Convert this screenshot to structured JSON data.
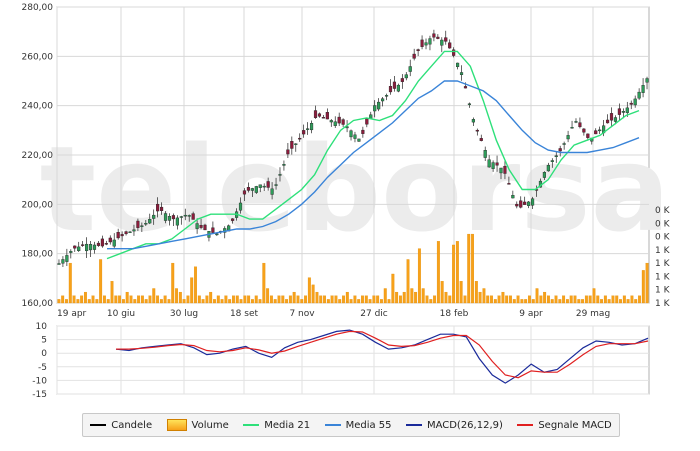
{
  "chart_data": [
    {
      "type": "candlestick",
      "title": "",
      "x_tick_labels": [
        "19 apr",
        "10 giu",
        "30 lug",
        "18 set",
        "7 nov",
        "27 dic",
        "18 feb",
        "9 apr",
        "29 mag"
      ],
      "y_tick_labels": [
        "160,00",
        "180,00",
        "200,00",
        "220,00",
        "240,00",
        "260,00",
        "280,00"
      ],
      "ylim": [
        160,
        280
      ],
      "volume_tick_labels": [
        "0 K",
        "0 K",
        "0 K",
        "1 K",
        "1 K",
        "1 K",
        "1 K",
        "1 K"
      ],
      "grid": true,
      "watermark": "teleborsa",
      "close_approx": [
        176,
        182,
        184,
        183,
        186,
        189,
        192,
        198,
        194,
        196,
        190,
        188,
        192,
        205,
        208,
        206,
        221,
        228,
        236,
        234,
        232,
        226,
        240,
        245,
        250,
        262,
        268,
        266,
        255,
        232,
        218,
        214,
        198,
        202,
        215,
        222,
        234,
        226,
        232,
        236,
        241,
        251
      ],
      "series": [
        {
          "name": "Media 21",
          "color": "#2ee07a",
          "values": [
            178,
            180,
            182,
            184,
            184,
            186,
            190,
            194,
            196,
            196,
            196,
            194,
            194,
            198,
            202,
            206,
            212,
            222,
            230,
            234,
            235,
            234,
            236,
            242,
            250,
            256,
            262,
            262,
            256,
            242,
            226,
            214,
            206,
            206,
            210,
            218,
            224,
            226,
            228,
            232,
            236,
            238
          ]
        },
        {
          "name": "Media 55",
          "color": "#3a84d8",
          "values": [
            182,
            182,
            182,
            183,
            184,
            185,
            186,
            187,
            188,
            189,
            190,
            190,
            191,
            193,
            196,
            200,
            205,
            211,
            216,
            221,
            225,
            229,
            233,
            238,
            243,
            246,
            250,
            250,
            248,
            246,
            242,
            236,
            230,
            225,
            222,
            221,
            221,
            221,
            222,
            223,
            225,
            227
          ]
        }
      ],
      "volume_approx": [
        0.05,
        0.1,
        0.05,
        0.55,
        0.1,
        0.05,
        0.1,
        0.15,
        0.05,
        0.1,
        0.05,
        0.6,
        0.1,
        0.05,
        0.3,
        0.1,
        0.1,
        0.05,
        0.15,
        0.1,
        0.05,
        0.1,
        0.1,
        0.05,
        0.1,
        0.2,
        0.1,
        0.05,
        0.1,
        0.05,
        0.55,
        0.2,
        0.15,
        0.05,
        0.1,
        0.35,
        0.5,
        0.1,
        0.05,
        0.1,
        0.15,
        0.05,
        0.1,
        0.05,
        0.1,
        0.05,
        0.1,
        0.1,
        0.05,
        0.1,
        0.1,
        0.05,
        0.1,
        0.05,
        0.55,
        0.2,
        0.1,
        0.05,
        0.1,
        0.1,
        0.05,
        0.1,
        0.15,
        0.1,
        0.05,
        0.1,
        0.35,
        0.25,
        0.15,
        0.1,
        0.1,
        0.05,
        0.1,
        0.1,
        0.05,
        0.1,
        0.15,
        0.05,
        0.1,
        0.05,
        0.1,
        0.1,
        0.05,
        0.1,
        0.1,
        0.05,
        0.2,
        0.05,
        0.4,
        0.15,
        0.1,
        0.15,
        0.6,
        0.2,
        0.15,
        0.75,
        0.2,
        0.1,
        0.05,
        0.1,
        0.85,
        0.3,
        0.15,
        0.1,
        0.8,
        0.85,
        0.3,
        0.1,
        0.95,
        0.95,
        0.3,
        0.15,
        0.2,
        0.1,
        0.1,
        0.05,
        0.1,
        0.15,
        0.1,
        0.1,
        0.05,
        0.1,
        0.05,
        0.05,
        0.1,
        0.05,
        0.2,
        0.1,
        0.15,
        0.1,
        0.05,
        0.1,
        0.05,
        0.1,
        0.05,
        0.1,
        0.1,
        0.05,
        0.05,
        0.1,
        0.1,
        0.2,
        0.1,
        0.05,
        0.1,
        0.05,
        0.1,
        0.1,
        0.05,
        0.1,
        0.05,
        0.1,
        0.05,
        0.1,
        0.45,
        0.55
      ]
    },
    {
      "type": "line",
      "title": "",
      "y_tick_labels": [
        "10",
        "5",
        "0",
        "-5",
        "-10",
        "-15"
      ],
      "ylim": [
        -15,
        10
      ],
      "series": [
        {
          "name": "MACD(26,12,9)",
          "color": "#1a2a9a",
          "values": [
            1.5,
            1,
            2,
            2.5,
            3,
            3.5,
            2,
            -0.5,
            0,
            1.5,
            2.5,
            0,
            -1.5,
            2,
            4,
            5,
            6.5,
            8,
            8.5,
            7,
            4,
            1.5,
            2,
            3,
            5,
            7,
            7,
            6,
            -2,
            -8,
            -11,
            -8,
            -4,
            -7,
            -6,
            -2,
            2,
            4.5,
            4,
            3,
            3.5,
            5.5
          ]
        },
        {
          "name": "Segnale MACD",
          "color": "#e02020",
          "values": [
            1.5,
            1.5,
            1.8,
            2.2,
            2.8,
            3.2,
            2.8,
            1,
            0.5,
            1,
            2,
            1.2,
            0,
            0.8,
            2.5,
            4,
            5.5,
            7,
            8,
            7.8,
            5.5,
            3,
            2.5,
            2.8,
            4,
            5.5,
            6.5,
            6.5,
            3,
            -3,
            -8,
            -9,
            -6.5,
            -7,
            -7,
            -4,
            -0.5,
            2.5,
            3.5,
            3.5,
            3.5,
            4.5
          ]
        }
      ]
    }
  ],
  "legend": [
    {
      "label": "Candele",
      "icon": "black-line",
      "color": "#000000"
    },
    {
      "label": "Volume",
      "icon": "volume-bar",
      "color": "#f7a11a"
    },
    {
      "label": "Media 21",
      "icon": "line",
      "color": "#2ee07a"
    },
    {
      "label": "Media 55",
      "icon": "line",
      "color": "#3a84d8"
    },
    {
      "label": "MACD(26,12,9)",
      "icon": "line",
      "color": "#1a2a9a"
    },
    {
      "label": "Segnale MACD",
      "icon": "line",
      "color": "#e02020"
    }
  ]
}
